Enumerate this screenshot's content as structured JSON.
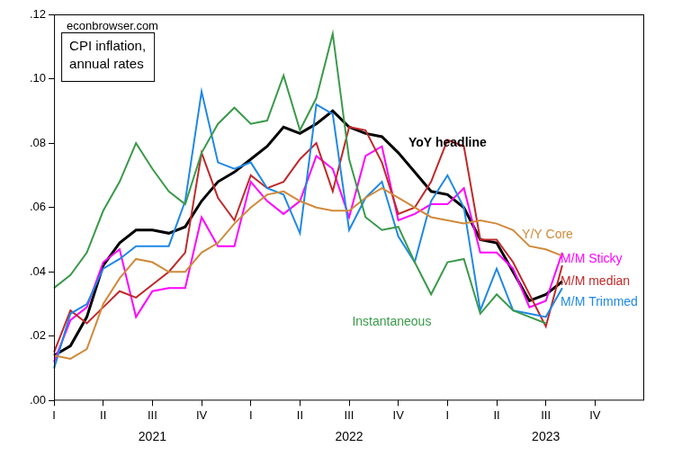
{
  "chart_data": {
    "type": "line",
    "title": [
      "CPI inflation,",
      "annual rates"
    ],
    "annotations": [
      "econbrowser.com"
    ],
    "categories": [
      "I",
      null,
      null,
      "II",
      null,
      null,
      "III",
      null,
      null,
      "IV",
      null,
      null,
      "I",
      null,
      null,
      "II",
      null,
      null,
      "III",
      null,
      null,
      "IV",
      null,
      null,
      "I",
      null,
      null,
      "II",
      null,
      null,
      "III",
      null,
      null,
      "IV",
      null,
      null,
      null
    ],
    "year_labels": [
      "2021",
      "2022",
      "2023"
    ],
    "series": [
      {
        "name": "Instantaneous",
        "color": "#3a9a4a",
        "values": [
          0.035,
          0.039,
          0.046,
          0.059,
          0.068,
          0.08,
          0.072,
          0.065,
          0.061,
          0.077,
          0.086,
          0.091,
          0.086,
          0.087,
          0.101,
          0.084,
          0.094,
          0.114,
          0.075,
          0.057,
          0.053,
          0.054,
          0.043,
          0.033,
          0.043,
          0.044,
          0.027,
          0.033,
          0.028,
          0.026,
          0.024,
          null,
          null,
          null,
          null,
          null,
          null
        ]
      },
      {
        "name": "Y/Y Core",
        "color": "#d08a3a",
        "values": [
          0.014,
          0.013,
          0.016,
          0.03,
          0.038,
          0.044,
          0.043,
          0.04,
          0.04,
          0.046,
          0.049,
          0.055,
          0.06,
          0.064,
          0.065,
          0.062,
          0.06,
          0.059,
          0.059,
          0.063,
          0.066,
          0.063,
          0.06,
          0.057,
          0.056,
          0.055,
          0.056,
          0.055,
          0.053,
          0.048,
          0.047,
          0.045,
          null,
          null,
          null,
          null,
          null
        ]
      },
      {
        "name": "M/M Trimmed",
        "color": "#1e88e5",
        "values": [
          0.01,
          0.027,
          0.03,
          0.041,
          0.044,
          0.048,
          0.048,
          0.048,
          0.062,
          0.096,
          0.074,
          0.072,
          0.074,
          0.066,
          0.064,
          0.052,
          0.092,
          0.089,
          0.053,
          0.063,
          0.068,
          0.051,
          0.043,
          0.062,
          0.07,
          0.06,
          0.028,
          0.041,
          0.028,
          0.027,
          0.026,
          0.035,
          null,
          null,
          null,
          null,
          null
        ]
      },
      {
        "name": "M/M median",
        "color": "#c0282a",
        "values": [
          0.015,
          0.028,
          0.024,
          0.029,
          0.034,
          0.032,
          0.036,
          0.04,
          0.046,
          0.077,
          0.063,
          0.056,
          0.07,
          0.066,
          0.068,
          0.075,
          0.08,
          0.065,
          0.085,
          0.084,
          0.074,
          0.058,
          0.06,
          0.068,
          0.081,
          0.079,
          0.05,
          0.05,
          0.043,
          0.033,
          0.023,
          0.042,
          null,
          null,
          null,
          null,
          null
        ]
      },
      {
        "name": "M/M Sticky",
        "color": "#ff00ff",
        "values": [
          0.012,
          0.025,
          0.029,
          0.043,
          0.047,
          0.026,
          0.034,
          0.035,
          0.035,
          0.057,
          0.048,
          0.048,
          0.068,
          0.062,
          0.058,
          0.062,
          0.076,
          0.072,
          0.057,
          0.076,
          0.079,
          0.056,
          0.058,
          0.061,
          0.061,
          0.066,
          0.046,
          0.046,
          0.041,
          0.029,
          0.031,
          0.046,
          null,
          null,
          null,
          null,
          null
        ]
      },
      {
        "name": "YoY headline",
        "color": "#000000",
        "values": [
          0.014,
          0.017,
          0.026,
          0.042,
          0.049,
          0.053,
          0.053,
          0.052,
          0.054,
          0.062,
          0.068,
          0.071,
          0.075,
          0.079,
          0.085,
          0.083,
          0.086,
          0.09,
          0.085,
          0.083,
          0.082,
          0.077,
          0.071,
          0.065,
          0.064,
          0.06,
          0.05,
          0.049,
          0.04,
          0.031,
          0.033,
          0.037,
          null,
          null,
          null,
          null,
          null
        ]
      }
    ],
    "ylim": [
      0,
      0.12
    ],
    "yticks": [
      {
        "value": 0,
        "label": ".00"
      },
      {
        "value": 0.02,
        "label": ".02"
      },
      {
        "value": 0.04,
        "label": ".04"
      },
      {
        "value": 0.06,
        "label": ".06"
      },
      {
        "value": 0.08,
        "label": ".08"
      },
      {
        "value": 0.1,
        "label": ".10"
      },
      {
        "value": 0.12,
        "label": ".12"
      }
    ],
    "grid": false
  }
}
